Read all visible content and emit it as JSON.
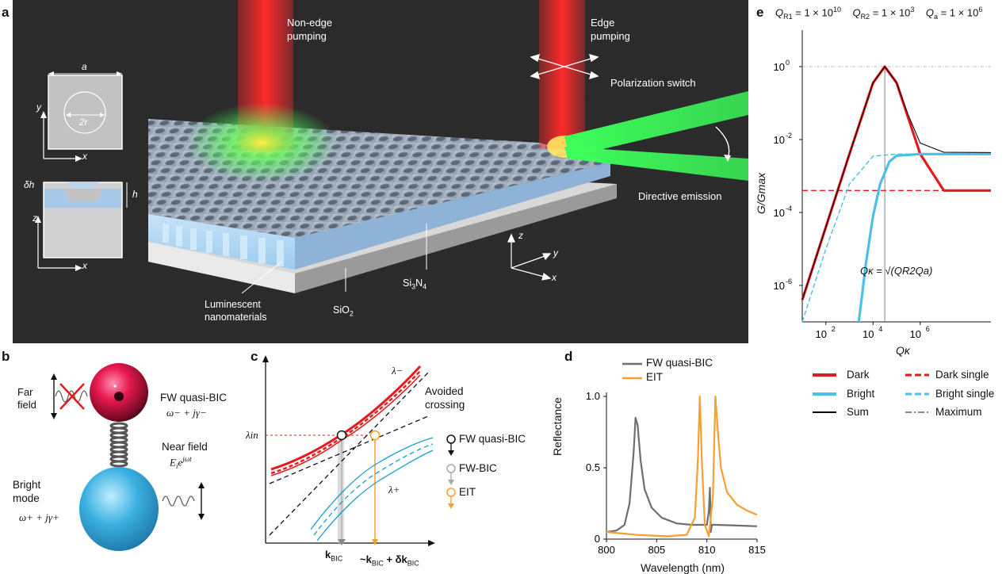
{
  "panels": {
    "a": {
      "letter": "a",
      "labels": {
        "non_edge": [
          "Non-edge",
          "pumping"
        ],
        "edge": [
          "Edge",
          "pumping"
        ],
        "polarization": "Polarization switch",
        "directive": "Directive emission",
        "luminescent": [
          "Luminescent",
          "nanomaterials"
        ],
        "sio2": "SiO",
        "sio2_sub": "2",
        "si": "Si",
        "si_sub1": "3",
        "n": "N",
        "si_sub2": "4",
        "cell_a": "a",
        "cell_2r": "2r",
        "axis_x": "x",
        "axis_y": "y",
        "axis_z": "z",
        "dh": "δh",
        "h": "h"
      },
      "colors": {
        "background": "#2b2b2b",
        "pump": "#ff2a2a",
        "emission": "#3cff5a"
      }
    },
    "b": {
      "letter": "b",
      "far_field": [
        "Far",
        "field"
      ],
      "fw_label": "FW quasi-BIC",
      "fw_eq": "ω− + jγ−",
      "near_field": "Near field",
      "near_eq": "E",
      "near_sub": "i",
      "near_exp": "e",
      "near_sup": "jωt",
      "bright": "Bright",
      "mode": "mode",
      "bright_eq": "ω+ + jγ+",
      "colors": {
        "dark_sphere": "#e8194f",
        "bright_sphere": "#3ab0e0"
      }
    },
    "c": {
      "letter": "c",
      "lambda_minus": "λ−",
      "lambda_plus": "λ+",
      "lambda_in": "λin",
      "avoided": [
        "Avoided",
        "crossing"
      ],
      "legend": [
        "FW quasi-BIC",
        "FW-BIC",
        "EIT"
      ],
      "xtick1": "k",
      "xtick1_sub": "BIC",
      "xtick2_pre": "~k",
      "xtick2_sub": "BIC",
      "xtick2_post": " + δk",
      "xtick2_sub2": "BIC"
    }
  },
  "chart_data": [
    {
      "id": "d",
      "letter": "d",
      "type": "line",
      "title": "",
      "xlabel": "Wavelength (nm)",
      "ylabel": "Reflectance",
      "xlim": [
        800,
        815
      ],
      "ylim": [
        0,
        1.0
      ],
      "xticks": [
        "800",
        "805",
        "810",
        "815"
      ],
      "yticks": [
        "0",
        "0.5",
        "1.0"
      ],
      "xtick_values": [
        800,
        805,
        810,
        815
      ],
      "ytick_values": [
        0,
        0.5,
        1.0
      ],
      "legend_position": "top-left",
      "series": [
        {
          "name": "FW quasi-BIC",
          "color": "#6e6e6e",
          "x": [
            800,
            801,
            801.8,
            802.3,
            802.7,
            802.9,
            803.1,
            803.4,
            803.8,
            804.5,
            805.5,
            807,
            808.5,
            809.5,
            810,
            810.2,
            810.3,
            810.4,
            810.5,
            811,
            813,
            815
          ],
          "y": [
            0.05,
            0.06,
            0.1,
            0.25,
            0.6,
            0.85,
            0.8,
            0.55,
            0.35,
            0.22,
            0.15,
            0.11,
            0.1,
            0.1,
            0.1,
            0.2,
            0.36,
            0.05,
            0.1,
            0.1,
            0.095,
            0.09
          ]
        },
        {
          "name": "EIT",
          "color": "#f5a030",
          "x": [
            800,
            803,
            806,
            808,
            808.8,
            809.1,
            809.3,
            809.5,
            809.8,
            810.2,
            810.6,
            810.85,
            811.1,
            811.4,
            812,
            813,
            814,
            815
          ],
          "y": [
            0.05,
            0.03,
            0.02,
            0.03,
            0.15,
            0.55,
            1.0,
            0.55,
            0.1,
            0.02,
            0.3,
            1.0,
            0.75,
            0.5,
            0.33,
            0.24,
            0.2,
            0.17
          ]
        }
      ]
    },
    {
      "id": "e",
      "letter": "e",
      "type": "line",
      "title": "",
      "header": [
        {
          "q": "Q",
          "sub": "R1",
          "val": " = 1 × 10",
          "exp": "10"
        },
        {
          "q": "Q",
          "sub": "R2",
          "val": " = 1 × 10",
          "exp": "3"
        },
        {
          "q": "Q",
          "sub": "a",
          "val": " = 1 × 10",
          "exp": "6"
        }
      ],
      "xlabel": "Qκ",
      "ylabel": "G/Gmax",
      "xscale": "log",
      "yscale": "log",
      "xlim": [
        10,
        1000000000
      ],
      "ylim": [
        1e-07,
        10
      ],
      "xticks": [
        {
          "b": "10",
          "e": "2",
          "v": 100
        },
        {
          "b": "10",
          "e": "4",
          "v": 10000
        },
        {
          "b": "10",
          "e": "6",
          "v": 1000000
        }
      ],
      "yticks": [
        {
          "b": "10",
          "e": "0",
          "v": 1
        },
        {
          "b": "10",
          "e": "-2",
          "v": 0.01
        },
        {
          "b": "10",
          "e": "-4",
          "v": 0.0001
        },
        {
          "b": "10",
          "e": "-6",
          "v": 1e-06
        }
      ],
      "annotation": "Qκ = √(QR2Qa)",
      "max_line_x": 31623,
      "max_line_y": 1,
      "legend": [
        {
          "name": "Dark",
          "style": "solid",
          "color": "#e41a1c"
        },
        {
          "name": "Dark single",
          "style": "dashed",
          "color": "#e41a1c"
        },
        {
          "name": "Bright",
          "style": "solid",
          "color": "#4dbfe6"
        },
        {
          "name": "Bright single",
          "style": "dashed",
          "color": "#4dbfe6"
        },
        {
          "name": "Sum",
          "style": "solid",
          "color": "#000000"
        },
        {
          "name": "Maximum",
          "style": "dashdot",
          "color": "#888888"
        }
      ],
      "series": [
        {
          "name": "Dark",
          "x": [
            10,
            100,
            1000,
            10000,
            31623,
            100000,
            1000000,
            10000000,
            1000000000
          ],
          "y": [
            4e-07,
            4e-05,
            0.004,
            0.36,
            1.0,
            0.36,
            0.004,
            0.0004,
            0.0004
          ]
        },
        {
          "name": "Dark single",
          "x": [
            10,
            1000000000
          ],
          "y": [
            0.0004,
            0.0004
          ]
        },
        {
          "name": "Bright",
          "x": [
            2500,
            5000,
            10000,
            20000,
            50000,
            100000,
            1000000,
            1000000000
          ],
          "y": [
            1e-07,
            4e-06,
            8e-05,
            0.0006,
            0.0025,
            0.0036,
            0.004,
            0.004
          ]
        },
        {
          "name": "Bright single",
          "x": [
            10,
            100,
            1000,
            10000,
            100000,
            1000000,
            1000000000
          ],
          "y": [
            1e-07,
            1e-05,
            0.0006,
            0.0035,
            0.004,
            0.004,
            0.004
          ]
        },
        {
          "name": "Sum",
          "x": [
            10,
            100,
            1000,
            10000,
            31623,
            100000,
            300000,
            1000000,
            10000000,
            1000000000
          ],
          "y": [
            4e-07,
            4e-05,
            0.004,
            0.36,
            1.0,
            0.36,
            0.05,
            0.008,
            0.0045,
            0.0044
          ]
        }
      ]
    }
  ]
}
